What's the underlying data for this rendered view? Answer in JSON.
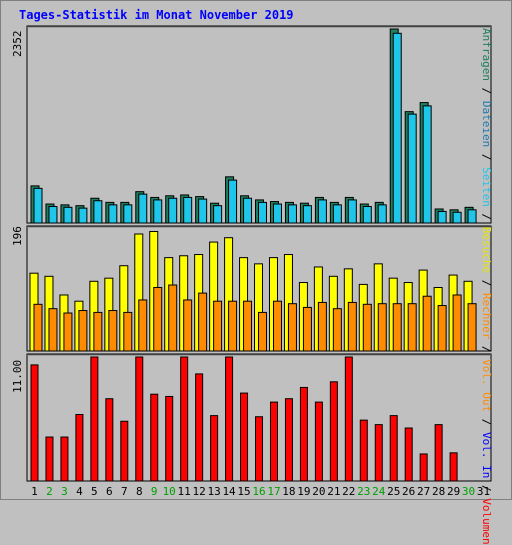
{
  "chart_data": {
    "type": "bar",
    "title": "Tages-Statistik im Monat November 2019",
    "categories": [
      "1",
      "2",
      "3",
      "4",
      "5",
      "6",
      "7",
      "8",
      "9",
      "10",
      "11",
      "12",
      "13",
      "14",
      "15",
      "16",
      "17",
      "18",
      "19",
      "20",
      "21",
      "22",
      "23",
      "24",
      "25",
      "26",
      "27",
      "28",
      "29",
      "30",
      "31"
    ],
    "weekend_days": [
      "2",
      "3",
      "9",
      "10",
      "16",
      "17",
      "23",
      "24",
      "30"
    ],
    "panels": [
      {
        "y_tick_label": "2352",
        "y_max": 2352,
        "series": [
          {
            "name": "Anfragen",
            "color": "#1f7f5f",
            "values": [
              450,
              230,
              220,
              210,
              300,
              250,
              250,
              380,
              310,
              330,
              340,
              320,
              240,
              560,
              330,
              280,
              260,
              250,
              240,
              310,
              250,
              310,
              230,
              250,
              2352,
              1350,
              1460,
              170,
              160,
              190,
              0
            ]
          },
          {
            "name": "Dateien",
            "color": "#1fc6ea",
            "values": [
              420,
              200,
              190,
              180,
              270,
              220,
              220,
              350,
              280,
              300,
              310,
              290,
              210,
              520,
              300,
              250,
              230,
              220,
              210,
              280,
              220,
              280,
              200,
              220,
              2300,
              1320,
              1420,
              140,
              130,
              160,
              0
            ]
          },
          {
            "name": "Seiten",
            "color": "#00ffff",
            "values": [
              90,
              60,
              50,
              50,
              70,
              60,
              60,
              80,
              70,
              70,
              80,
              70,
              60,
              100,
              70,
              60,
              60,
              60,
              50,
              70,
              60,
              70,
              50,
              60,
              140,
              100,
              110,
              40,
              40,
              50,
              0
            ]
          }
        ]
      },
      {
        "y_tick_label": "196",
        "y_max": 196,
        "series": [
          {
            "name": "Besuche",
            "color": "#ffff00",
            "values": [
              125,
              120,
              90,
              80,
              112,
              117,
              137,
              188,
              192,
              150,
              153,
              155,
              175,
              182,
              150,
              140,
              150,
              155,
              110,
              135,
              120,
              132,
              107,
              140,
              117,
              110,
              130,
              102,
              122,
              112,
              0
            ]
          },
          {
            "name": "Rechner",
            "color": "#ff8c00",
            "values": [
              75,
              68,
              61,
              65,
              62,
              65,
              62,
              82,
              102,
              106,
              82,
              93,
              80,
              80,
              80,
              62,
              80,
              76,
              70,
              78,
              68,
              78,
              75,
              76,
              76,
              76,
              88,
              73,
              90,
              76,
              0
            ]
          }
        ]
      },
      {
        "y_tick_label": "11.00",
        "y_max": 11.0,
        "series": [
          {
            "name": "Volumen",
            "color": "#ff0000",
            "values": [
              10.3,
              3.9,
              3.9,
              5.9,
              11.5,
              7.3,
              5.3,
              11.2,
              7.7,
              7.5,
              11.2,
              9.5,
              5.8,
              11.3,
              7.8,
              5.7,
              7.0,
              7.3,
              8.3,
              7.0,
              8.8,
              12.5,
              5.4,
              5.0,
              5.8,
              4.7,
              2.4,
              5.0,
              2.5,
              0,
              0
            ]
          }
        ]
      }
    ],
    "right_legend": [
      {
        "text": "Anfragen",
        "color": "#1f7f5f"
      },
      {
        "text": " / ",
        "color": "#000000"
      },
      {
        "text": "Dateien",
        "color": "#1f7ab0"
      },
      {
        "text": " / ",
        "color": "#000000"
      },
      {
        "text": "Seiten",
        "color": "#1fc6ea"
      },
      {
        "text": " / ",
        "color": "#000000"
      },
      {
        "text": "Besuche",
        "color": "#e6e600"
      },
      {
        "text": " / ",
        "color": "#000000"
      },
      {
        "text": "Rechner",
        "color": "#ff8c00"
      },
      {
        "text": " / ",
        "color": "#000000"
      },
      {
        "text": "Vol. Out",
        "color": "#ff8c00"
      },
      {
        "text": " / ",
        "color": "#000000"
      },
      {
        "text": "Vol. In",
        "color": "#0000ff"
      },
      {
        "text": " / ",
        "color": "#000000"
      },
      {
        "text": "Volumen",
        "color": "#ff0000"
      }
    ],
    "colors": {
      "background": "#c0c0c0",
      "weekday_label": "#000000",
      "weekend_label": "#00a000"
    }
  }
}
